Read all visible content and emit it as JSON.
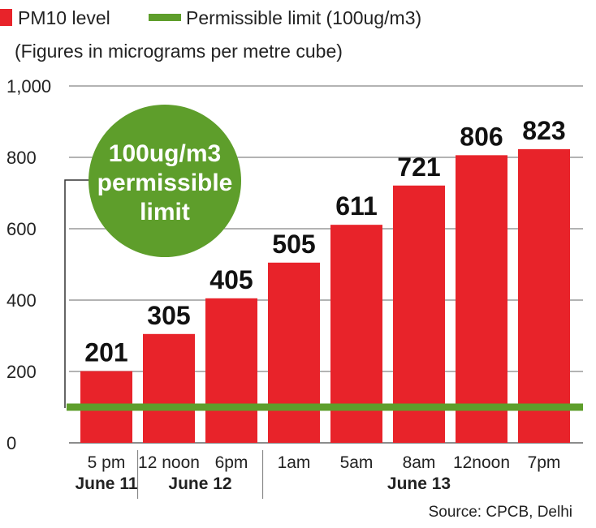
{
  "legend": {
    "items": [
      {
        "label": "PM10 level",
        "color": "#e8232a"
      },
      {
        "label": "Permissible limit (100ug/m3)",
        "color": "#5e9e2b"
      }
    ]
  },
  "subtitle": "(Figures in micrograms per metre cube)",
  "badge": {
    "lines": [
      "100ug/m3",
      "permissible",
      "limit"
    ],
    "color": "#5e9e2b"
  },
  "source": "Source: CPCB, Delhi",
  "chart_data": {
    "type": "bar",
    "categories": [
      "5 pm",
      "12 noon",
      "6pm",
      "1am",
      "5am",
      "8am",
      "12noon",
      "7pm"
    ],
    "values": [
      201,
      305,
      405,
      505,
      611,
      721,
      806,
      823
    ],
    "value_labels": [
      "201",
      "305",
      "405",
      "505",
      "611",
      "721",
      "806",
      "823"
    ],
    "groups": [
      {
        "label": "June 11",
        "start": 0,
        "end": 0
      },
      {
        "label": "June 12",
        "start": 1,
        "end": 2
      },
      {
        "label": "June 13",
        "start": 3,
        "end": 7
      }
    ],
    "y_ticks": [
      0,
      200,
      400,
      600,
      800,
      1000
    ],
    "y_tick_labels": [
      "0",
      "200",
      "400",
      "600",
      "800",
      "1,000"
    ],
    "ylim": [
      0,
      1000
    ],
    "reference_line": {
      "value": 100
    },
    "bar_color": "#e8232a",
    "line_color": "#5e9e2b",
    "grid": true,
    "legend_position": "top-left"
  }
}
